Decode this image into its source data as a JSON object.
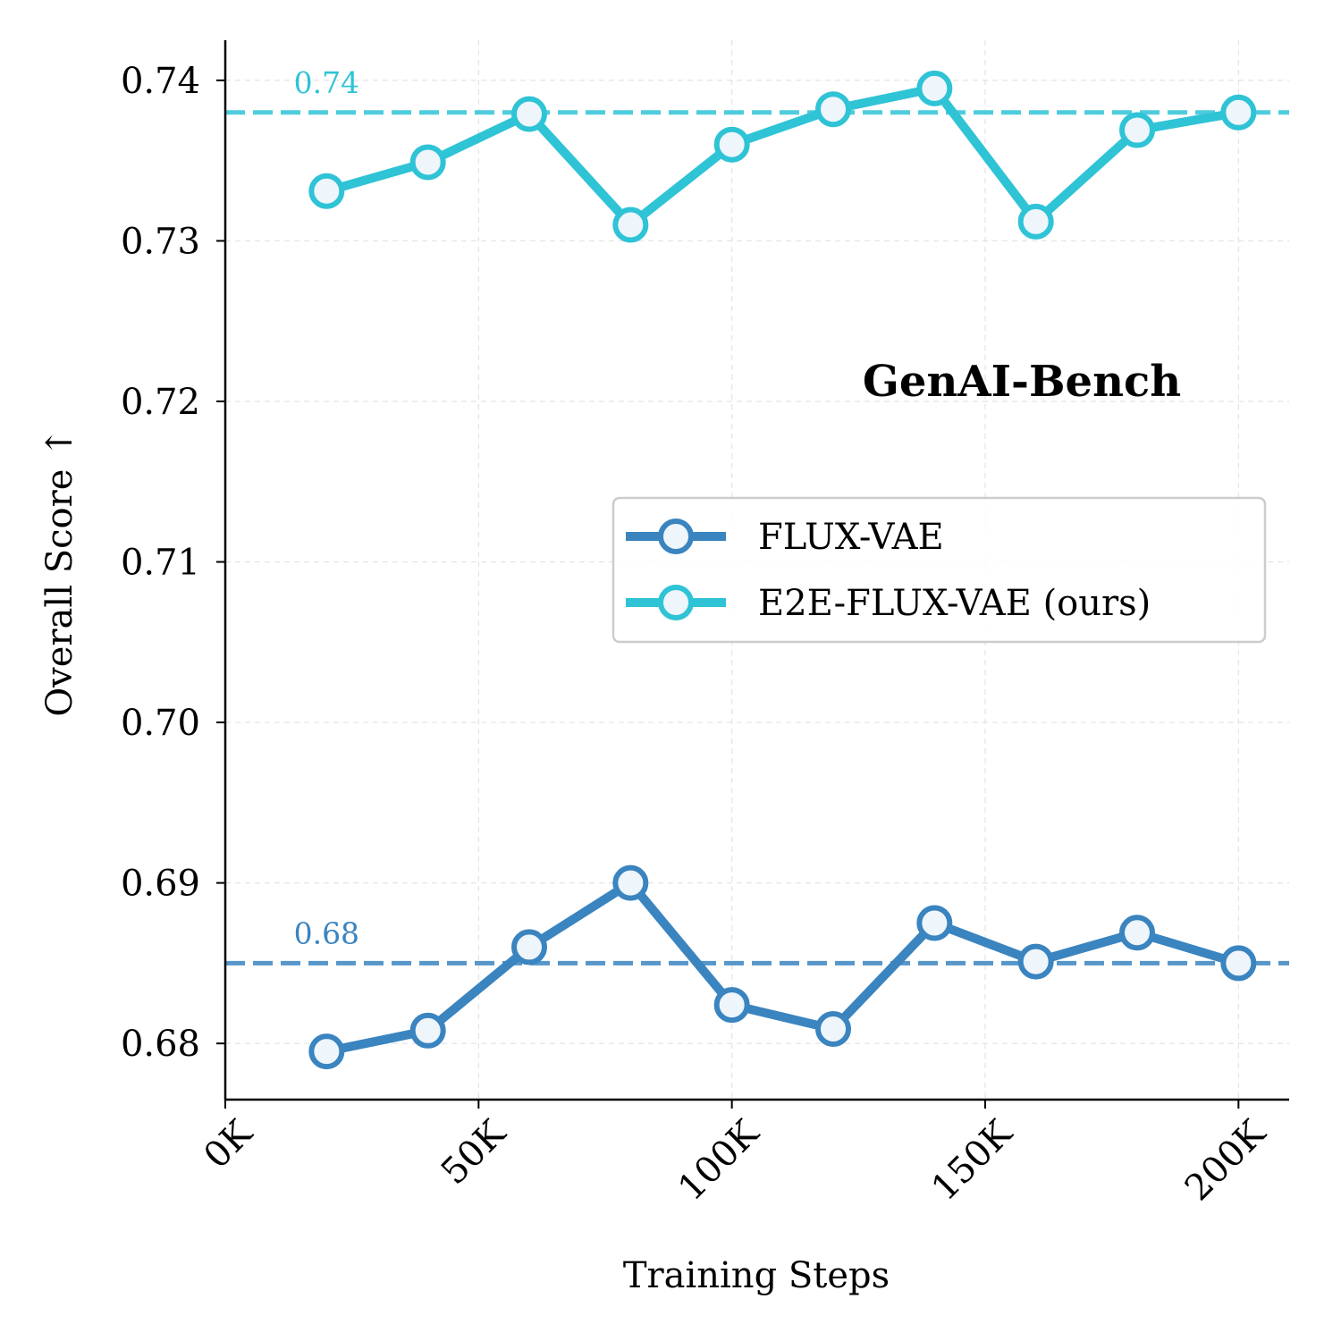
{
  "chart_data": {
    "type": "line",
    "title": "GenAI-Bench",
    "xlabel": "Training Steps",
    "ylabel": "Overall Score ↑",
    "xlim": [
      0,
      210000
    ],
    "ylim": [
      0.6765,
      0.7425
    ],
    "xticks": [
      {
        "value": 0,
        "label": "0K"
      },
      {
        "value": 50000,
        "label": "50K"
      },
      {
        "value": 100000,
        "label": "100K"
      },
      {
        "value": 150000,
        "label": "150K"
      },
      {
        "value": 200000,
        "label": "200K"
      }
    ],
    "yticks": [
      {
        "value": 0.68,
        "label": "0.68"
      },
      {
        "value": 0.69,
        "label": "0.69"
      },
      {
        "value": 0.7,
        "label": "0.70"
      },
      {
        "value": 0.71,
        "label": "0.71"
      },
      {
        "value": 0.72,
        "label": "0.72"
      },
      {
        "value": 0.73,
        "label": "0.73"
      },
      {
        "value": 0.74,
        "label": "0.74"
      }
    ],
    "grid": true,
    "legend_position": "center-right",
    "x": [
      20000,
      40000,
      60000,
      80000,
      100000,
      120000,
      140000,
      160000,
      180000,
      200000
    ],
    "series": [
      {
        "name": "FLUX-VAE",
        "color": "#3a84bf",
        "values": [
          0.6795,
          0.6808,
          0.686,
          0.69,
          0.6824,
          0.6809,
          0.6875,
          0.6851,
          0.6869,
          0.685
        ],
        "reference": {
          "value": 0.685,
          "label": "0.68",
          "label_x": 20000,
          "label_position": "above"
        }
      },
      {
        "name": "E2E-FLUX-VAE (ours)",
        "color": "#2fc3d6",
        "values": [
          0.7331,
          0.7349,
          0.7379,
          0.731,
          0.736,
          0.7382,
          0.7395,
          0.7312,
          0.7369,
          0.738
        ],
        "reference": {
          "value": 0.738,
          "label": "0.74",
          "label_x": 20000,
          "label_position": "above"
        }
      }
    ]
  }
}
